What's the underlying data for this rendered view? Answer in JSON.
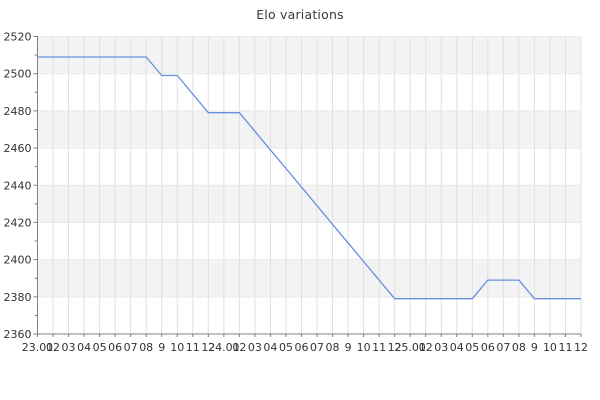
{
  "chart": {
    "title": "Elo variations"
  },
  "chart_data": {
    "type": "line",
    "title": "Elo variations",
    "xlabel": "",
    "ylabel": "",
    "legend": "none",
    "grid": "on",
    "ylim": [
      2360,
      2520
    ],
    "y_tick_step": 20,
    "y_minor_tick_step": 10,
    "x_labels": [
      "23.01",
      "02",
      "03",
      "04",
      "05",
      "06",
      "07",
      "08",
      "9",
      "10",
      "11",
      "12",
      "24.01",
      "02",
      "03",
      "04",
      "05",
      "06",
      "07",
      "08",
      "9",
      "10",
      "11",
      "12",
      "25.01",
      "02",
      "03",
      "04",
      "05",
      "06",
      "07",
      "08",
      "9",
      "10",
      "11",
      "12"
    ],
    "series": [
      {
        "name": "Elo",
        "values": [
          2509,
          2509,
          2509,
          2509,
          2509,
          2509,
          2509,
          2509,
          2499,
          2499,
          2489,
          2479,
          2479,
          2479,
          2469,
          2459,
          2449,
          2439,
          2429,
          2419,
          2409,
          2399,
          2389,
          2379,
          2379,
          2379,
          2379,
          2379,
          2379,
          2389,
          2389,
          2389,
          2379,
          2379,
          2379,
          2379
        ]
      }
    ],
    "colors": {
      "line": "#6590dd",
      "band": "#f3f3f3",
      "v_grid": "#e0e0e0",
      "h_grid": "#e9e9e9",
      "axis": "#808080",
      "tick_text": "#333333",
      "title_text": "#3c3c3c"
    }
  }
}
